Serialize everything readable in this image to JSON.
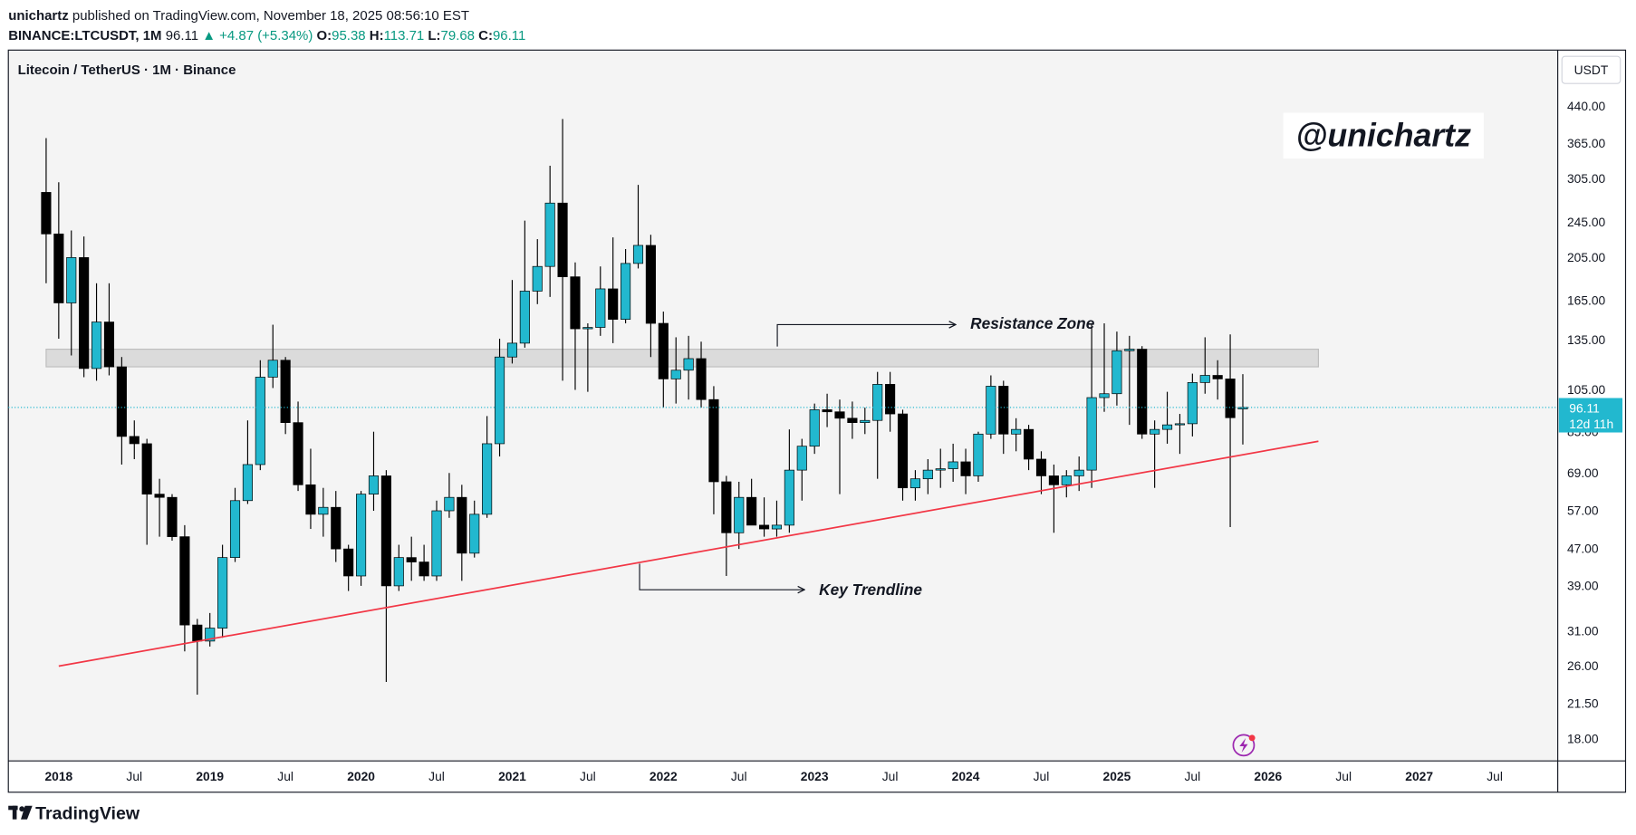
{
  "header": {
    "author": "unichartz",
    "published": "published on TradingView.com, November 18, 2025 08:56:10 EST",
    "symbol": "BINANCE:LTCUSDT, 1M",
    "last": "96.11",
    "change": "▲ +4.87 (+5.34%)",
    "ohlc": [
      {
        "label": "O:",
        "value": "95.38"
      },
      {
        "label": "H:",
        "value": "113.71"
      },
      {
        "label": "L:",
        "value": "79.68"
      },
      {
        "label": "C:",
        "value": "96.11"
      }
    ]
  },
  "chart_data": {
    "type": "candlestick",
    "title": "Litecoin / TetherUS · 1M · Binance",
    "watermark": "@unichartz",
    "currency": "USDT",
    "countdown": "12d 11h",
    "up_color": "#22b8cf",
    "down_color": "#000000",
    "trend_color": "#f23645",
    "zone_color": "#d6d6d6",
    "log_scale": true,
    "grid": false,
    "x": [
      "2017-12",
      "2018-01",
      "2018-02",
      "2018-03",
      "2018-04",
      "2018-05",
      "2018-06",
      "2018-07",
      "2018-08",
      "2018-09",
      "2018-10",
      "2018-11",
      "2018-12",
      "2019-01",
      "2019-02",
      "2019-03",
      "2019-04",
      "2019-05",
      "2019-06",
      "2019-07",
      "2019-08",
      "2019-09",
      "2019-10",
      "2019-11",
      "2019-12",
      "2020-01",
      "2020-02",
      "2020-03",
      "2020-04",
      "2020-05",
      "2020-06",
      "2020-07",
      "2020-08",
      "2020-09",
      "2020-10",
      "2020-11",
      "2020-12",
      "2021-01",
      "2021-02",
      "2021-03",
      "2021-04",
      "2021-05",
      "2021-06",
      "2021-07",
      "2021-08",
      "2021-09",
      "2021-10",
      "2021-11",
      "2021-12",
      "2022-01",
      "2022-02",
      "2022-03",
      "2022-04",
      "2022-05",
      "2022-06",
      "2022-07",
      "2022-08",
      "2022-09",
      "2022-10",
      "2022-11",
      "2022-12",
      "2023-01",
      "2023-02",
      "2023-03",
      "2023-04",
      "2023-05",
      "2023-06",
      "2023-07",
      "2023-08",
      "2023-09",
      "2023-10",
      "2023-11",
      "2023-12",
      "2024-01",
      "2024-02",
      "2024-03",
      "2024-04",
      "2024-05",
      "2024-06",
      "2024-07",
      "2024-08",
      "2024-09",
      "2024-10",
      "2024-11",
      "2024-12",
      "2025-01",
      "2025-02",
      "2025-03",
      "2025-04",
      "2025-05",
      "2025-06",
      "2025-07",
      "2025-08",
      "2025-09",
      "2025-10",
      "2025-11"
    ],
    "open": [
      285,
      231,
      163,
      205,
      117,
      148,
      118,
      83,
      80,
      62,
      61,
      50,
      32,
      29.5,
      31.5,
      45,
      60,
      72,
      112,
      122,
      89,
      65,
      56,
      58,
      47,
      41,
      62,
      68,
      39,
      45,
      44,
      41,
      57,
      61,
      46,
      56,
      80,
      124,
      133,
      173,
      196,
      270,
      186,
      143,
      144,
      175,
      150,
      199,
      218,
      147,
      111,
      116,
      123,
      100,
      66,
      51,
      61,
      53,
      52,
      53,
      70,
      79,
      95,
      94,
      91,
      89,
      90,
      108,
      93,
      64,
      67,
      70,
      70.5,
      73,
      68,
      84,
      107,
      84,
      86,
      74,
      68,
      65,
      68,
      70,
      101,
      103,
      128,
      129,
      84,
      86,
      88,
      88.5,
      109,
      113,
      111,
      95.38
    ],
    "high": [
      375,
      300,
      235,
      228,
      180,
      180,
      124,
      90,
      82,
      67,
      62,
      53,
      33,
      34,
      48,
      64,
      90,
      122,
      146,
      124,
      99,
      78,
      64,
      63,
      48,
      63,
      85,
      70,
      48,
      50,
      48,
      60,
      69,
      65,
      60,
      92,
      136,
      183,
      247,
      225,
      326,
      413,
      200,
      147,
      196,
      227,
      214,
      296,
      230,
      156,
      137,
      138,
      134,
      107,
      68,
      66,
      67,
      61,
      60,
      86,
      82,
      98,
      103,
      100,
      99,
      96,
      115,
      115,
      95,
      70,
      74,
      78,
      80,
      78,
      85,
      113,
      110,
      91,
      88,
      77,
      72,
      70,
      75,
      146,
      147,
      141,
      138,
      131,
      90,
      104,
      93,
      114,
      137,
      122,
      139,
      113.71
    ],
    "low": [
      180,
      136,
      125,
      112,
      110,
      113,
      72,
      74,
      48,
      50,
      49,
      28,
      22.5,
      28.7,
      30,
      44,
      59,
      70,
      106,
      84,
      63,
      52,
      50,
      44,
      38,
      39,
      57,
      24,
      38,
      40,
      40,
      40,
      55,
      40,
      45,
      55,
      75,
      120,
      130,
      162,
      168,
      110,
      105,
      104,
      138,
      133,
      147,
      194,
      124,
      96,
      98,
      100,
      96,
      56,
      41,
      47,
      53,
      50,
      50,
      51,
      60,
      76,
      87,
      62,
      82,
      84,
      67,
      85,
      60,
      60,
      62,
      64,
      66,
      62,
      66,
      82,
      76,
      77,
      70,
      62,
      51,
      61,
      63,
      64,
      94,
      97,
      88,
      82,
      64,
      80,
      76,
      83,
      103,
      100,
      52.5,
      79.68
    ],
    "close": [
      231,
      163,
      205,
      117,
      148,
      118,
      83,
      80,
      62,
      61,
      50,
      32,
      29.5,
      31.5,
      45,
      60,
      72,
      112,
      122,
      89,
      65,
      56,
      58,
      47,
      41,
      62,
      68,
      39,
      45,
      44,
      41,
      57,
      61,
      46,
      56,
      80,
      124,
      133,
      173,
      196,
      270,
      186,
      143,
      144,
      175,
      150,
      199,
      218,
      147,
      111,
      116,
      123,
      100,
      66,
      51,
      61,
      53,
      52,
      53,
      70,
      79,
      95,
      94,
      91,
      89,
      90,
      108,
      93,
      64,
      67,
      70,
      70.5,
      73,
      68,
      84,
      107,
      84,
      86,
      74,
      68,
      65,
      68,
      70,
      101,
      103,
      128,
      129,
      84,
      86,
      88,
      88.5,
      109,
      113,
      111,
      91.24,
      96.11
    ],
    "xlim": [
      "2017-09",
      "2027-12"
    ],
    "xticks": [
      {
        "value": "2018-01",
        "label": "2018"
      },
      {
        "value": "2018-07",
        "label": "Jul"
      },
      {
        "value": "2019-01",
        "label": "2019"
      },
      {
        "value": "2019-07",
        "label": "Jul"
      },
      {
        "value": "2020-01",
        "label": "2020"
      },
      {
        "value": "2020-07",
        "label": "Jul"
      },
      {
        "value": "2021-01",
        "label": "2021"
      },
      {
        "value": "2021-07",
        "label": "Jul"
      },
      {
        "value": "2022-01",
        "label": "2022"
      },
      {
        "value": "2022-07",
        "label": "Jul"
      },
      {
        "value": "2023-01",
        "label": "2023"
      },
      {
        "value": "2023-07",
        "label": "Jul"
      },
      {
        "value": "2024-01",
        "label": "2024"
      },
      {
        "value": "2024-07",
        "label": "Jul"
      },
      {
        "value": "2025-01",
        "label": "2025"
      },
      {
        "value": "2025-07",
        "label": "Jul"
      },
      {
        "value": "2026-01",
        "label": "2026"
      },
      {
        "value": "2026-07",
        "label": "Jul"
      },
      {
        "value": "2027-01",
        "label": "2027"
      },
      {
        "value": "2027-07",
        "label": "Jul"
      }
    ],
    "ylim": [
      16.1,
      585
    ],
    "yticks": [
      {
        "value": 440,
        "label": "440.00"
      },
      {
        "value": 365,
        "label": "365.00"
      },
      {
        "value": 305,
        "label": "305.00"
      },
      {
        "value": 245,
        "label": "245.00"
      },
      {
        "value": 205,
        "label": "205.00"
      },
      {
        "value": 165,
        "label": "165.00"
      },
      {
        "value": 135,
        "label": "135.00"
      },
      {
        "value": 105,
        "label": "105.00"
      },
      {
        "value": 85,
        "label": "85.00"
      },
      {
        "value": 69,
        "label": "69.00"
      },
      {
        "value": 57,
        "label": "57.00"
      },
      {
        "value": 47,
        "label": "47.00"
      },
      {
        "value": 39,
        "label": "39.00"
      },
      {
        "value": 31,
        "label": "31.00"
      },
      {
        "value": 26,
        "label": "26.00"
      },
      {
        "value": 21.5,
        "label": "21.50"
      },
      {
        "value": 18,
        "label": "18.00"
      }
    ],
    "zone": {
      "label": "Resistance Zone",
      "from": "2017-12",
      "to": "2026-05",
      "low": 118,
      "high": 129
    },
    "trendline": {
      "label": "Key Trendline",
      "points": [
        {
          "x": "2018-01",
          "y": 26
        },
        {
          "x": "2026-05",
          "y": 81
        }
      ]
    }
  },
  "footer": {
    "brand": "TradingView"
  }
}
